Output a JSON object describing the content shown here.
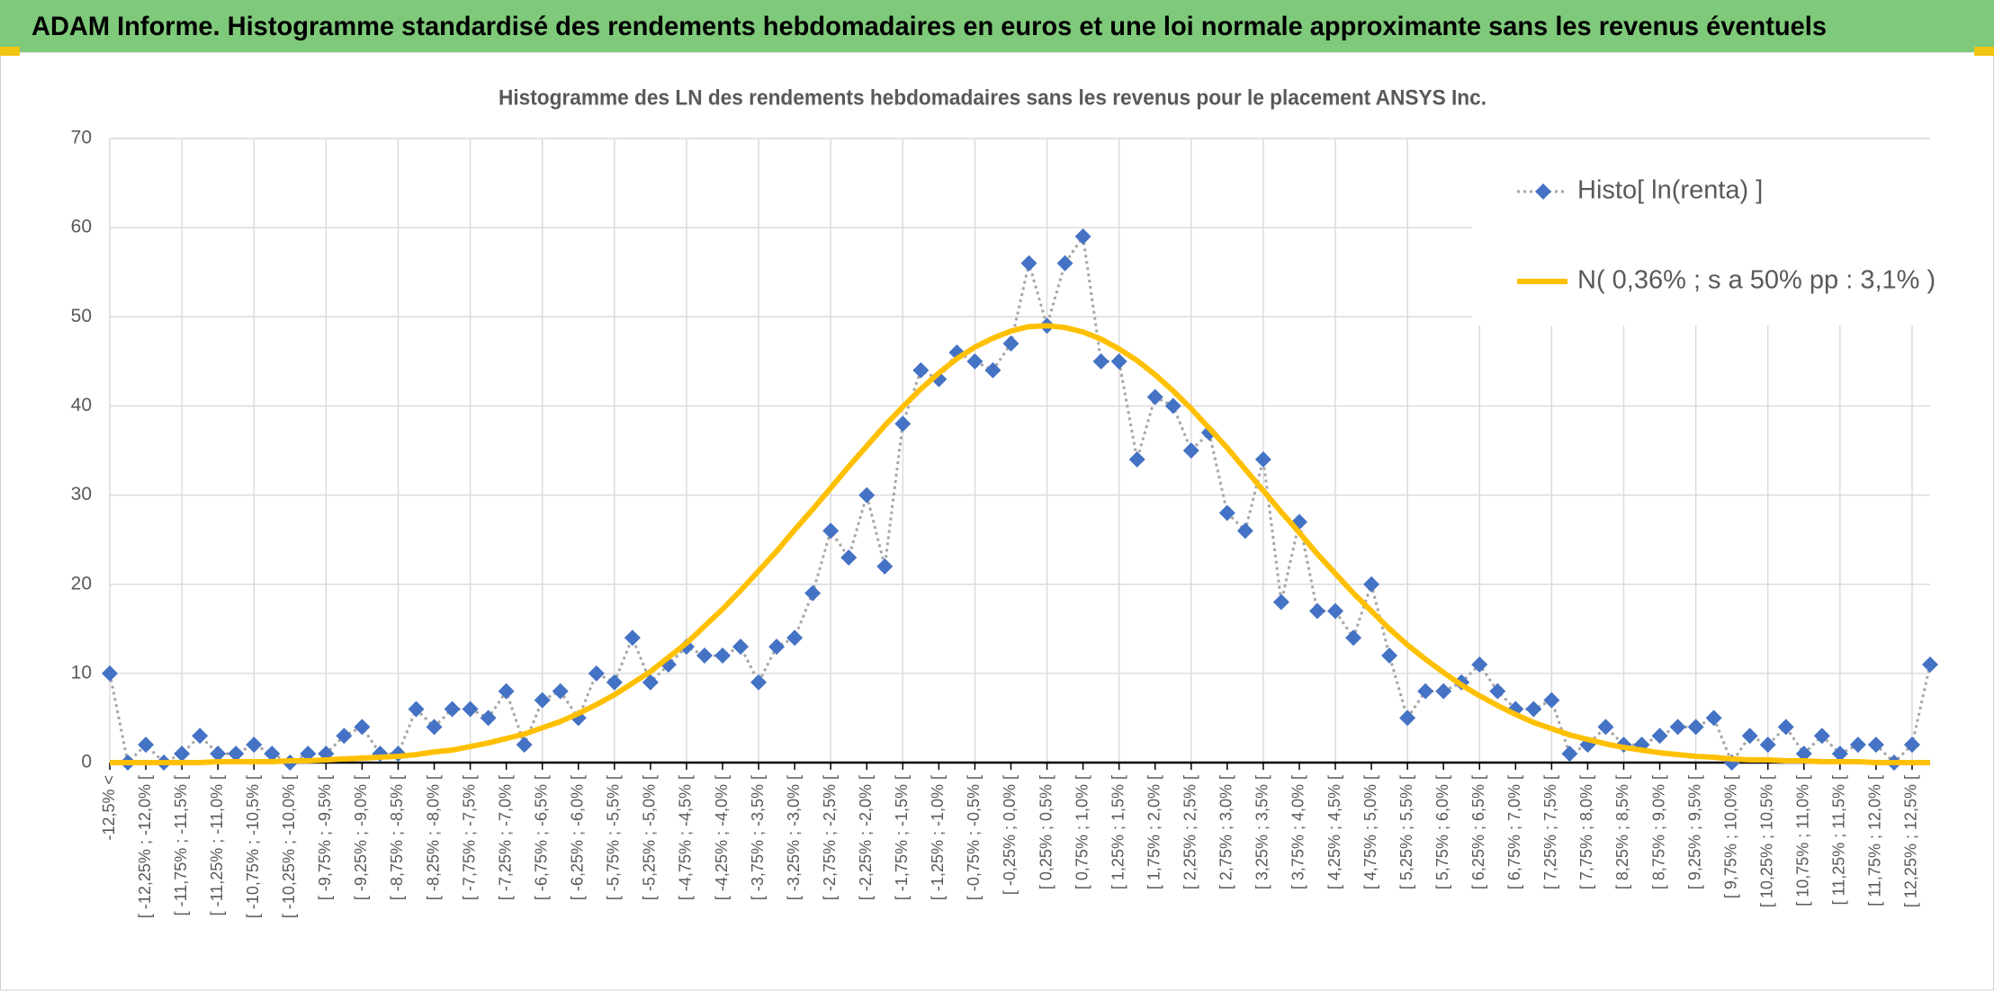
{
  "chart_data": {
    "type": "line",
    "header": "ADAM Informe. Histogramme standardisé des rendements hebdomadaires en euros et une loi normale approximante sans les revenus éventuels",
    "title": "Histogramme des LN des rendements hebdomadaires sans les revenus pour le placement ANSYS Inc.",
    "categories": [
      "-12,5% <",
      null,
      "[ -12,25% ; -12,0% [",
      null,
      "[ -11,75% ; -11,5% [",
      null,
      "[ -11,25% ; -11,0% [",
      null,
      "[ -10,75% ; -10,5% [",
      null,
      "[ -10,25% ; -10,0% [",
      null,
      "[ -9,75% ; -9,5% [",
      null,
      "[ -9,25% ; -9,0% [",
      null,
      "[ -8,75% ; -8,5% [",
      null,
      "[ -8,25% ; -8,0% [",
      null,
      "[ -7,75% ; -7,5% [",
      null,
      "[ -7,25% ; -7,0% [",
      null,
      "[ -6,75% ; -6,5% [",
      null,
      "[ -6,25% ; -6,0% [",
      null,
      "[ -5,75% ; -5,5% [",
      null,
      "[ -5,25% ; -5,0% [",
      null,
      "[ -4,75% ; -4,5% [",
      null,
      "[ -4,25% ; -4,0% [",
      null,
      "[ -3,75% ; -3,5% [",
      null,
      "[ -3,25% ; -3,0% [",
      null,
      "[ -2,75% ; -2,5% [",
      null,
      "[ -2,25% ; -2,0% [",
      null,
      "[ -1,75% ; -1,5% [",
      null,
      "[ -1,25% ; -1,0% [",
      null,
      "[ -0,75% ; -0,5% [",
      null,
      "[ -0,25% ; 0,0% [",
      null,
      "[ 0,25% ; 0,5% [",
      null,
      "[ 0,75% ; 1,0% [",
      null,
      "[ 1,25% ; 1,5% [",
      null,
      "[ 1,75% ; 2,0% [",
      null,
      "[ 2,25% ; 2,5% [",
      null,
      "[ 2,75% ; 3,0% [",
      null,
      "[ 3,25% ; 3,5% [",
      null,
      "[ 3,75% ; 4,0% [",
      null,
      "[ 4,25% ; 4,5% [",
      null,
      "[ 4,75% ; 5,0% [",
      null,
      "[ 5,25% ; 5,5% [",
      null,
      "[ 5,75% ; 6,0% [",
      null,
      "[ 6,25% ; 6,5% [",
      null,
      "[ 6,75% ; 7,0% [",
      null,
      "[ 7,25% ; 7,5% [",
      null,
      "[ 7,75% ; 8,0% [",
      null,
      "[ 8,25% ; 8,5% [",
      null,
      "[ 8,75% ; 9,0% [",
      null,
      "[ 9,25% ; 9,5% [",
      null,
      "[ 9,75% ; 10,0% [",
      null,
      "[ 10,25% ; 10,5% [",
      null,
      "[ 10,75% ; 11,0% [",
      null,
      "[ 11,25% ; 11,5% [",
      null,
      "[ 11,75% ; 12,0% [",
      null,
      "[ 12,25% ; 12,5% [",
      null
    ],
    "series": [
      {
        "name": "Histo[ ln(renta) ]",
        "color": "#4472c4",
        "line_color": "#a5a5a5",
        "line_style": "dotted",
        "marker": "diamond",
        "values": [
          10,
          0,
          2,
          0,
          1,
          3,
          1,
          1,
          2,
          1,
          0,
          1,
          1,
          3,
          4,
          1,
          1,
          6,
          4,
          6,
          6,
          5,
          8,
          2,
          7,
          8,
          5,
          10,
          9,
          14,
          9,
          11,
          13,
          12,
          12,
          13,
          9,
          13,
          14,
          19,
          26,
          23,
          30,
          22,
          38,
          44,
          43,
          46,
          45,
          44,
          47,
          56,
          49,
          56,
          59,
          45,
          45,
          34,
          41,
          40,
          35,
          37,
          28,
          26,
          34,
          18,
          27,
          17,
          17,
          14,
          20,
          12,
          5,
          8,
          8,
          9,
          11,
          8,
          6,
          6,
          7,
          1,
          2,
          4,
          2,
          2,
          3,
          4,
          4,
          5,
          0,
          3,
          2,
          4,
          1,
          3,
          1,
          2,
          2,
          0,
          2,
          11
        ]
      },
      {
        "name": "N( 0,36% ; s a 50% pp : 3,1% )",
        "color": "#ffc000",
        "line_style": "solid",
        "values": [
          0,
          0,
          0,
          0,
          0,
          0,
          0.1,
          0.1,
          0.1,
          0.1,
          0.2,
          0.2,
          0.3,
          0.4,
          0.5,
          0.6,
          0.7,
          0.9,
          1.2,
          1.4,
          1.8,
          2.2,
          2.7,
          3.2,
          3.9,
          4.6,
          5.5,
          6.5,
          7.6,
          8.9,
          10.2,
          11.8,
          13.4,
          15.3,
          17.2,
          19.3,
          21.5,
          23.7,
          26.1,
          28.4,
          30.8,
          33.2,
          35.5,
          37.8,
          39.9,
          41.9,
          43.7,
          45.3,
          46.6,
          47.6,
          48.4,
          48.9,
          49,
          48.8,
          48.3,
          47.5,
          46.4,
          45.1,
          43.5,
          41.7,
          39.7,
          37.5,
          35.3,
          32.9,
          30.5,
          28.1,
          25.8,
          23.4,
          21.2,
          19,
          17,
          15,
          13.2,
          11.6,
          10.1,
          8.7,
          7.5,
          6.4,
          5.4,
          4.5,
          3.8,
          3.1,
          2.6,
          2.1,
          1.7,
          1.4,
          1.1,
          0.9,
          0.7,
          0.6,
          0.4,
          0.3,
          0.3,
          0.2,
          0.2,
          0.1,
          0.1,
          0.1,
          0,
          0,
          0,
          0
        ]
      }
    ],
    "ylim": [
      0,
      70
    ],
    "yticks": [
      0,
      10,
      20,
      30,
      40,
      50,
      60,
      70
    ],
    "grid": true,
    "legend": "upper right"
  }
}
